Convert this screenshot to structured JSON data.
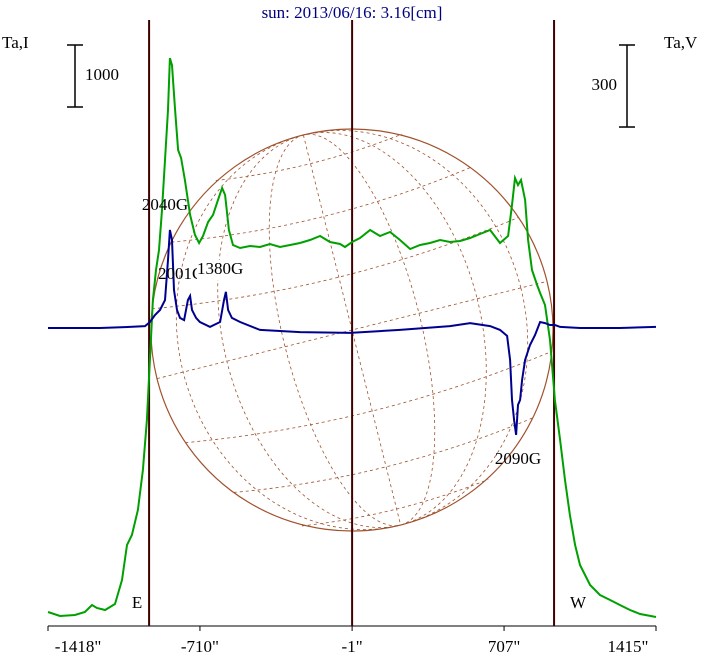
{
  "chart_data": {
    "type": "line",
    "title": "sun: 2013/06/16: 3.16[cm]",
    "y_label": "Ta,I",
    "y2_label": "Ta,V",
    "xlim": [
      -1418,
      1415
    ],
    "xticks": [
      {
        "value": -1418,
        "label": "-1418\""
      },
      {
        "value": -710,
        "label": "-710\""
      },
      {
        "value": -1,
        "label": "-1\""
      },
      {
        "value": 707,
        "label": "707\""
      },
      {
        "value": 1415,
        "label": "1415\""
      }
    ],
    "ylim": [
      -161,
      9452
    ],
    "y2lim": [
      -1090,
      1090
    ],
    "scale_bars": [
      {
        "value": 1000,
        "axis": "y"
      },
      {
        "value": 300,
        "axis": "y2"
      }
    ],
    "limb_lines": [
      {
        "label": "E",
        "x": -947
      },
      {
        "label": "W",
        "x": 940
      }
    ],
    "center_x": -1,
    "annotations": [
      "2040G",
      "2001G",
      "1380G",
      "2090G"
    ],
    "series": [
      {
        "color": "#00a000",
        "x": [
          -1418,
          -1362,
          -1292,
          -1246,
          -1213,
          -1190,
          -1152,
          -1106,
          -1073,
          -1050,
          -1027,
          -999,
          -976,
          -957,
          -943,
          -929,
          -915,
          -901,
          -887,
          -873,
          -859,
          -850,
          -840,
          -826,
          -812,
          -798,
          -780,
          -756,
          -733,
          -714,
          -696,
          -672,
          -649,
          -626,
          -607,
          -593,
          -575,
          -556,
          -523,
          -477,
          -430,
          -384,
          -337,
          -290,
          -244,
          -197,
          -150,
          -104,
          -57,
          -34,
          -1,
          36,
          83,
          129,
          176,
          222,
          269,
          316,
          362,
          409,
          455,
          502,
          549,
          595,
          642,
          688,
          726,
          744,
          758,
          772,
          786,
          805,
          819,
          837,
          861,
          875,
          898,
          921,
          944,
          968,
          991,
          1014,
          1038,
          1061,
          1108,
          1154,
          1201,
          1247,
          1294,
          1341,
          1415
        ],
        "values": [
          65,
          0,
          16,
          65,
          177,
          129,
          97,
          194,
          581,
          1145,
          1307,
          1710,
          2355,
          3161,
          4129,
          5097,
          5581,
          5904,
          6549,
          7356,
          8162,
          8997,
          8884,
          8162,
          7517,
          7388,
          7033,
          6469,
          6146,
          6017,
          6130,
          6356,
          6469,
          6711,
          6904,
          6791,
          6226,
          5984,
          5936,
          5968,
          5952,
          6000,
          5952,
          5984,
          6017,
          6065,
          6130,
          6033,
          6000,
          5952,
          6033,
          6097,
          6226,
          6130,
          6194,
          6065,
          5920,
          5984,
          6017,
          6065,
          6033,
          6049,
          6097,
          6162,
          6226,
          6017,
          6130,
          6630,
          7065,
          6952,
          7033,
          6711,
          6065,
          5581,
          5339,
          5210,
          5016,
          4452,
          3484,
          2839,
          2194,
          1629,
          1145,
          823,
          500,
          339,
          258,
          177,
          97,
          32,
          -16
        ]
      },
      {
        "color": "#000090",
        "axis": "y2",
        "x": [
          -1418,
          -1176,
          -1036,
          -966,
          -943,
          -919,
          -896,
          -873,
          -859,
          -850,
          -840,
          -831,
          -817,
          -803,
          -784,
          -766,
          -756,
          -747,
          -728,
          -710,
          -663,
          -616,
          -598,
          -589,
          -579,
          -561,
          -523,
          -430,
          -244,
          -10,
          222,
          455,
          549,
          642,
          688,
          721,
          735,
          744,
          754,
          763,
          772,
          782,
          791,
          805,
          828,
          851,
          875,
          898,
          921,
          944,
          968,
          1061,
          1247,
          1415
        ],
        "values": [
          0,
          0,
          4,
          7,
          22,
          48,
          66,
          102,
          249,
          359,
          322,
          139,
          66,
          37,
          29,
          102,
          117,
          66,
          37,
          22,
          4,
          22,
          102,
          132,
          66,
          37,
          22,
          -7,
          -15,
          -18,
          -7,
          7,
          18,
          7,
          -7,
          -29,
          -117,
          -263,
          -337,
          -391,
          -281,
          -263,
          -190,
          -117,
          -62,
          -26,
          22,
          18,
          11,
          11,
          4,
          0,
          0,
          4
        ]
      }
    ]
  }
}
